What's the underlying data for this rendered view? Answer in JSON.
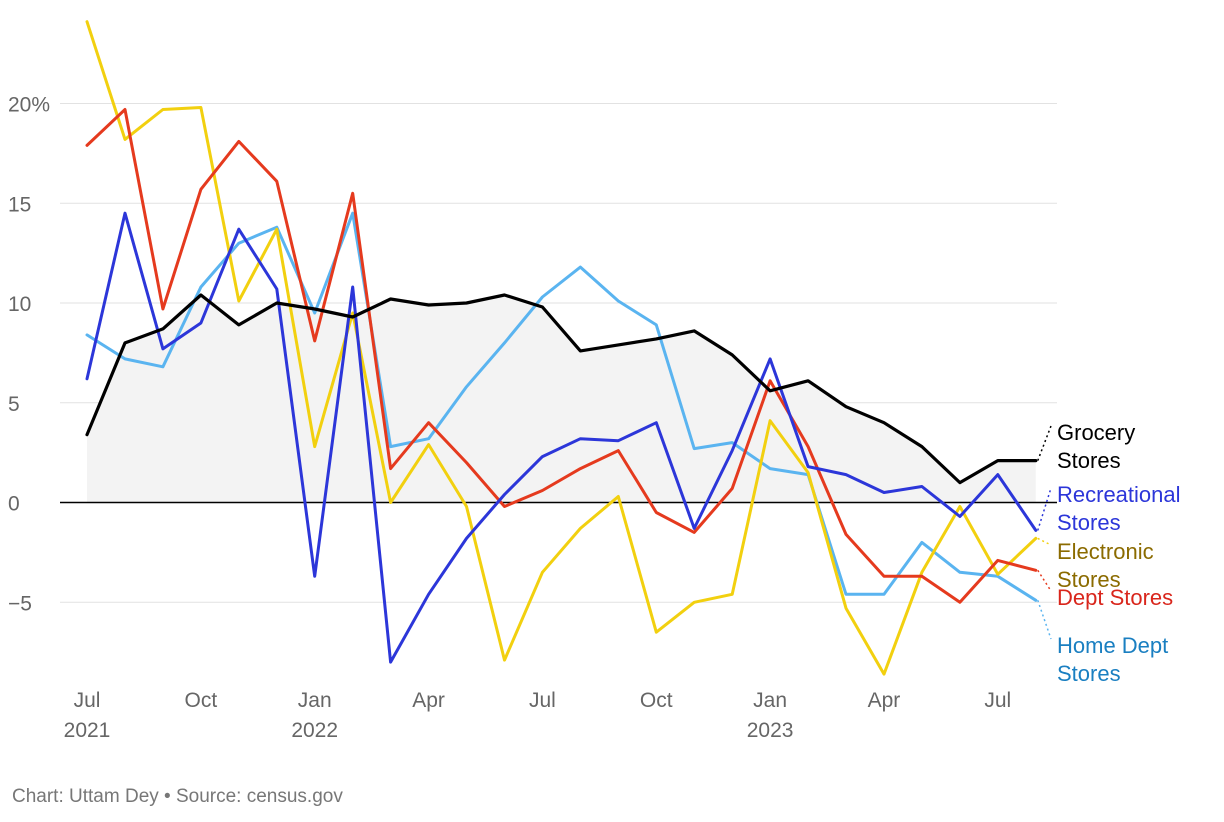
{
  "chart_data": {
    "type": "line",
    "title": "",
    "xlabel": "",
    "ylabel": "",
    "credit": "Chart: Uttam Dey • Source: census.gov",
    "x": [
      "2021-07",
      "2021-08",
      "2021-09",
      "2021-10",
      "2021-11",
      "2021-12",
      "2022-01",
      "2022-02",
      "2022-03",
      "2022-04",
      "2022-05",
      "2022-06",
      "2022-07",
      "2022-08",
      "2022-09",
      "2022-10",
      "2022-11",
      "2022-12",
      "2023-01",
      "2023-02",
      "2023-03",
      "2023-04",
      "2023-05",
      "2023-06",
      "2023-07",
      "2023-08"
    ],
    "ylim": [
      -9,
      24.5
    ],
    "y_ticks": [
      -5,
      0,
      5,
      10,
      15,
      20
    ],
    "y_tick_labels": [
      "−5",
      "0",
      "5",
      "10",
      "15",
      "20%"
    ],
    "x_ticks": [
      {
        "x": "2021-07",
        "line1": "Jul",
        "line2": "2021"
      },
      {
        "x": "2021-10",
        "line1": "Oct",
        "line2": ""
      },
      {
        "x": "2022-01",
        "line1": "Jan",
        "line2": "2022"
      },
      {
        "x": "2022-04",
        "line1": "Apr",
        "line2": ""
      },
      {
        "x": "2022-07",
        "line1": "Jul",
        "line2": ""
      },
      {
        "x": "2022-10",
        "line1": "Oct",
        "line2": ""
      },
      {
        "x": "2023-01",
        "line1": "Jan",
        "line2": "2023"
      },
      {
        "x": "2023-04",
        "line1": "Apr",
        "line2": ""
      },
      {
        "x": "2023-07",
        "line1": "Jul",
        "line2": ""
      }
    ],
    "grid": true,
    "area_series": "Grocery Stores",
    "area_color": "#f3f3f3",
    "series": [
      {
        "name": "Home Dept Stores",
        "color": "#5ab4f0",
        "label_color": "#1a7fc1",
        "label_lines": [
          "Home Dept",
          "Stores"
        ],
        "values": [
          8.4,
          7.2,
          6.8,
          10.8,
          13.0,
          13.8,
          9.5,
          14.5,
          2.8,
          3.2,
          5.8,
          8.0,
          10.3,
          11.8,
          10.1,
          8.9,
          2.7,
          3.0,
          1.7,
          1.4,
          -4.6,
          -4.6,
          -2.0,
          -3.5,
          -3.7,
          -4.9
        ]
      },
      {
        "name": "Electronic Stores",
        "color": "#f2d00f",
        "label_color": "#8b6b00",
        "label_lines": [
          "Electronic",
          "Stores"
        ],
        "values": [
          24.1,
          18.2,
          19.7,
          19.8,
          10.1,
          13.7,
          2.8,
          9.5,
          0.0,
          2.9,
          -0.2,
          -7.9,
          -3.5,
          -1.3,
          0.3,
          -6.5,
          -5.0,
          -4.6,
          4.1,
          1.5,
          -5.3,
          -8.6,
          -3.5,
          -0.2,
          -3.6,
          -1.8
        ]
      },
      {
        "name": "Dept Stores",
        "color": "#e53a1e",
        "label_color": "#d9261c",
        "label_lines": [
          "Dept Stores"
        ],
        "values": [
          17.9,
          19.7,
          9.7,
          15.7,
          18.1,
          16.1,
          8.1,
          15.5,
          1.7,
          4.0,
          2.0,
          -0.2,
          0.6,
          1.7,
          2.6,
          -0.5,
          -1.5,
          0.7,
          6.1,
          2.8,
          -1.6,
          -3.7,
          -3.7,
          -5.0,
          -2.9,
          -3.4
        ]
      },
      {
        "name": "Recreational Stores",
        "color": "#2c36d9",
        "label_color": "#2c36d9",
        "label_lines": [
          "Recreational",
          "Stores"
        ],
        "values": [
          6.2,
          14.5,
          7.7,
          9.0,
          13.7,
          10.7,
          -3.7,
          10.8,
          -8.0,
          -4.6,
          -1.8,
          0.4,
          2.3,
          3.2,
          3.1,
          4.0,
          -1.3,
          2.6,
          7.2,
          1.8,
          1.4,
          0.5,
          0.8,
          -0.7,
          1.4,
          -1.4
        ]
      },
      {
        "name": "Grocery Stores",
        "color": "#000000",
        "label_color": "#000000",
        "label_lines": [
          "Grocery",
          "Stores"
        ],
        "values": [
          3.4,
          8.0,
          8.7,
          10.4,
          8.9,
          10.0,
          9.7,
          9.3,
          10.2,
          9.9,
          10.0,
          10.4,
          9.8,
          7.6,
          7.9,
          8.2,
          8.6,
          7.4,
          5.6,
          6.1,
          4.8,
          4.0,
          2.8,
          1.0,
          2.1,
          2.1
        ]
      }
    ]
  }
}
